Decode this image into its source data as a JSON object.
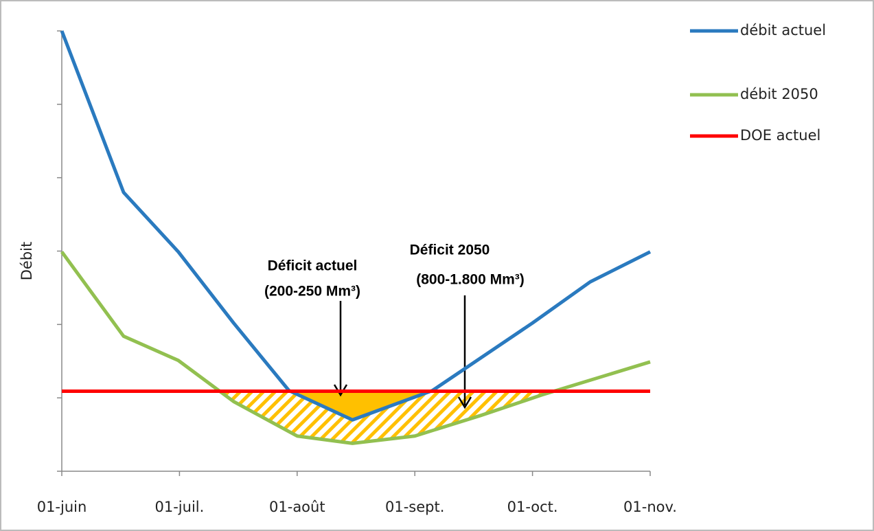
{
  "chart_data": {
    "type": "line",
    "ylabel": "Débit",
    "xlim": [
      0,
      5
    ],
    "xticks": [
      {
        "value": 0,
        "label": "01-juin"
      },
      {
        "value": 1,
        "label": "01-juil."
      },
      {
        "value": 2,
        "label": "01-août"
      },
      {
        "value": 3,
        "label": "01-sept."
      },
      {
        "value": 4,
        "label": "01-oct."
      },
      {
        "value": 5,
        "label": "01-nov."
      }
    ],
    "ylim": [
      0,
      6
    ],
    "yticks": [
      0,
      1,
      2,
      3,
      4,
      5,
      6
    ],
    "legend": "right",
    "series": [
      {
        "name": "débit actuel",
        "color": "#2a7abf",
        "x": [
          0,
          0.525,
          0.99,
          1.46,
          1.93,
          2.47,
          3.15,
          4.0,
          4.49,
          5
        ],
        "values": [
          6,
          3.8,
          2.99,
          2.02,
          1.1,
          0.7,
          1.1,
          2.02,
          2.58,
          2.99
        ]
      },
      {
        "name": "débit 2050",
        "color": "#92c050",
        "x": [
          0,
          0.525,
          0.99,
          1.46,
          2.0,
          2.47,
          3.0,
          3.56,
          4.08,
          5
        ],
        "values": [
          2.99,
          1.84,
          1.51,
          0.95,
          0.48,
          0.38,
          0.48,
          0.76,
          1.04,
          1.49
        ]
      },
      {
        "name": "DOE actuel",
        "color": "#ff0000",
        "x": [
          0,
          5
        ],
        "values": [
          1.09,
          1.09
        ]
      }
    ],
    "deficit_colors": {
      "actuel": "#ffc000",
      "2050": "#ffc000"
    },
    "annotations": [
      "Déficit actuel",
      "(200-250 Mm³)",
      "Déficit 2050",
      "(800-1.800 Mm³)"
    ]
  }
}
